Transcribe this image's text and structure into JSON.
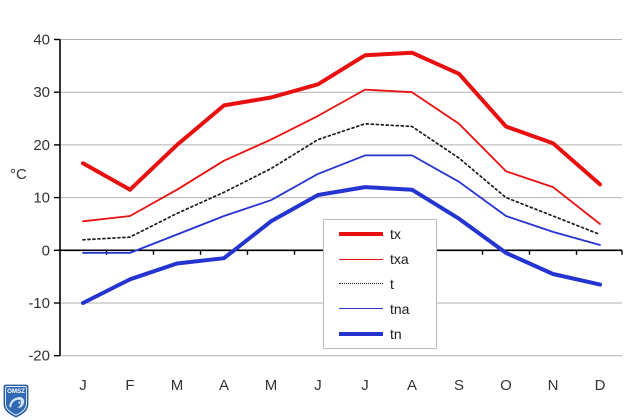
{
  "chart_data": {
    "type": "line",
    "title": "",
    "ylabel": "°C",
    "categories": [
      "J",
      "F",
      "M",
      "A",
      "M",
      "J",
      "J",
      "A",
      "S",
      "O",
      "N",
      "D"
    ],
    "y_ticks": [
      40,
      30,
      20,
      10,
      0,
      -10,
      -20
    ],
    "y_tick_labels": [
      "40",
      "30",
      "20",
      "10",
      "0",
      "-10",
      "-20"
    ],
    "ylim": [
      -20,
      40
    ],
    "grid": true,
    "legend_position": "inside-bottom-center",
    "series": [
      {
        "name": "tx",
        "color": "#e8100f",
        "style": "solid",
        "width": 4,
        "values": [
          16.5,
          11.5,
          20,
          27.5,
          29,
          31.5,
          37,
          37.5,
          33.5,
          23.5,
          20.3,
          12.5
        ]
      },
      {
        "name": "txa",
        "color": "#e8100f",
        "style": "solid",
        "width": 1.8,
        "values": [
          5.5,
          6.5,
          11.5,
          17,
          21,
          25.5,
          30.5,
          30,
          24,
          15,
          12,
          5
        ]
      },
      {
        "name": "t",
        "color": "#1a1a1a",
        "style": "dotted",
        "width": 1.7,
        "values": [
          2,
          2.5,
          7,
          11,
          15.5,
          21,
          24,
          23.5,
          17.5,
          10,
          6.5,
          3
        ]
      },
      {
        "name": "tna",
        "color": "#2434d0",
        "style": "solid",
        "width": 1.8,
        "values": [
          -0.5,
          -0.5,
          3,
          6.5,
          9.5,
          14.5,
          18,
          18,
          13,
          6.5,
          3.5,
          1
        ]
      },
      {
        "name": "tn",
        "color": "#2434d0",
        "style": "solid",
        "width": 4,
        "values": [
          -10,
          -5.5,
          -2.5,
          -1.5,
          5.5,
          10.5,
          12,
          11.5,
          6,
          -0.5,
          -4.5,
          -6.5
        ]
      }
    ]
  },
  "colors": {
    "red": "#e8100f",
    "blue": "#2434d0",
    "gridline": "#b2b2b2",
    "axis": "#000000",
    "text": "#333333"
  },
  "logo": {
    "text": "OMSZ"
  }
}
